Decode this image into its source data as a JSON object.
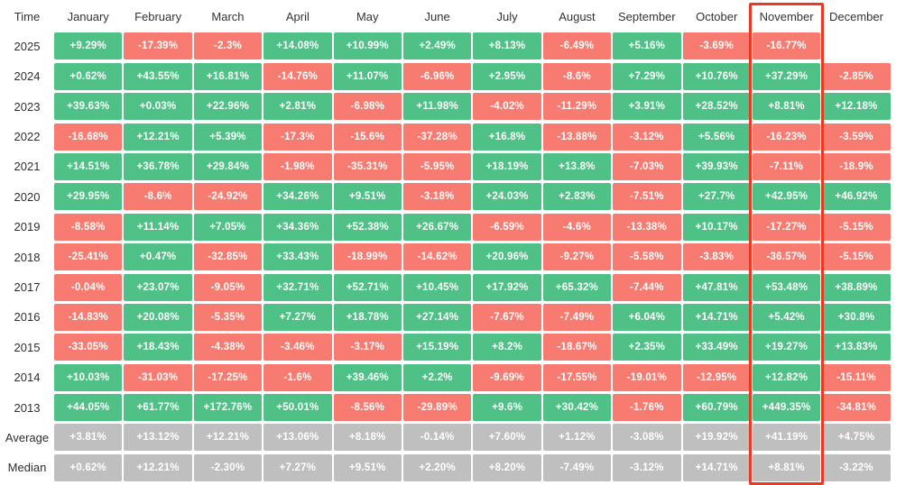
{
  "chart_data": {
    "type": "heatmap",
    "description": "Monthly percentage returns table by year",
    "corner_label": "Time",
    "columns": [
      "January",
      "February",
      "March",
      "April",
      "May",
      "June",
      "July",
      "August",
      "September",
      "October",
      "November",
      "December"
    ],
    "rows": [
      {
        "label": "2025",
        "kind": "year",
        "values": [
          "+9.29%",
          "-17.39%",
          "-2.3%",
          "+14.08%",
          "+10.99%",
          "+2.49%",
          "+8.13%",
          "-6.49%",
          "+5.16%",
          "-3.69%",
          "-16.77%",
          ""
        ]
      },
      {
        "label": "2024",
        "kind": "year",
        "values": [
          "+0.62%",
          "+43.55%",
          "+16.81%",
          "-14.76%",
          "+11.07%",
          "-6.96%",
          "+2.95%",
          "-8.6%",
          "+7.29%",
          "+10.76%",
          "+37.29%",
          "-2.85%"
        ]
      },
      {
        "label": "2023",
        "kind": "year",
        "values": [
          "+39.63%",
          "+0.03%",
          "+22.96%",
          "+2.81%",
          "-6.98%",
          "+11.98%",
          "-4.02%",
          "-11.29%",
          "+3.91%",
          "+28.52%",
          "+8.81%",
          "+12.18%"
        ]
      },
      {
        "label": "2022",
        "kind": "year",
        "values": [
          "-16.68%",
          "+12.21%",
          "+5.39%",
          "-17.3%",
          "-15.6%",
          "-37.28%",
          "+16.8%",
          "-13.88%",
          "-3.12%",
          "+5.56%",
          "-16.23%",
          "-3.59%"
        ]
      },
      {
        "label": "2021",
        "kind": "year",
        "values": [
          "+14.51%",
          "+36.78%",
          "+29.84%",
          "-1.98%",
          "-35.31%",
          "-5.95%",
          "+18.19%",
          "+13.8%",
          "-7.03%",
          "+39.93%",
          "-7.11%",
          "-18.9%"
        ]
      },
      {
        "label": "2020",
        "kind": "year",
        "values": [
          "+29.95%",
          "-8.6%",
          "-24.92%",
          "+34.26%",
          "+9.51%",
          "-3.18%",
          "+24.03%",
          "+2.83%",
          "-7.51%",
          "+27.7%",
          "+42.95%",
          "+46.92%"
        ]
      },
      {
        "label": "2019",
        "kind": "year",
        "values": [
          "-8.58%",
          "+11.14%",
          "+7.05%",
          "+34.36%",
          "+52.38%",
          "+26.67%",
          "-6.59%",
          "-4.6%",
          "-13.38%",
          "+10.17%",
          "-17.27%",
          "-5.15%"
        ]
      },
      {
        "label": "2018",
        "kind": "year",
        "values": [
          "-25.41%",
          "+0.47%",
          "-32.85%",
          "+33.43%",
          "-18.99%",
          "-14.62%",
          "+20.96%",
          "-9.27%",
          "-5.58%",
          "-3.83%",
          "-36.57%",
          "-5.15%"
        ]
      },
      {
        "label": "2017",
        "kind": "year",
        "values": [
          "-0.04%",
          "+23.07%",
          "-9.05%",
          "+32.71%",
          "+52.71%",
          "+10.45%",
          "+17.92%",
          "+65.32%",
          "-7.44%",
          "+47.81%",
          "+53.48%",
          "+38.89%"
        ]
      },
      {
        "label": "2016",
        "kind": "year",
        "values": [
          "-14.83%",
          "+20.08%",
          "-5.35%",
          "+7.27%",
          "+18.78%",
          "+27.14%",
          "-7.67%",
          "-7.49%",
          "+6.04%",
          "+14.71%",
          "+5.42%",
          "+30.8%"
        ]
      },
      {
        "label": "2015",
        "kind": "year",
        "values": [
          "-33.05%",
          "+18.43%",
          "-4.38%",
          "-3.46%",
          "-3.17%",
          "+15.19%",
          "+8.2%",
          "-18.67%",
          "+2.35%",
          "+33.49%",
          "+19.27%",
          "+13.83%"
        ]
      },
      {
        "label": "2014",
        "kind": "year",
        "values": [
          "+10.03%",
          "-31.03%",
          "-17.25%",
          "-1.6%",
          "+39.46%",
          "+2.2%",
          "-9.69%",
          "-17.55%",
          "-19.01%",
          "-12.95%",
          "+12.82%",
          "-15.11%"
        ]
      },
      {
        "label": "2013",
        "kind": "year",
        "values": [
          "+44.05%",
          "+61.77%",
          "+172.76%",
          "+50.01%",
          "-8.56%",
          "-29.89%",
          "+9.6%",
          "+30.42%",
          "-1.76%",
          "+60.79%",
          "+449.35%",
          "-34.81%"
        ]
      },
      {
        "label": "Average",
        "kind": "summary",
        "values": [
          "+3.81%",
          "+13.12%",
          "+12.21%",
          "+13.06%",
          "+8.18%",
          "-0.14%",
          "+7.60%",
          "+1.12%",
          "-3.08%",
          "+19.92%",
          "+41.19%",
          "+4.75%"
        ]
      },
      {
        "label": "Median",
        "kind": "summary",
        "values": [
          "+0.62%",
          "+12.21%",
          "-2.30%",
          "+7.27%",
          "+9.51%",
          "+2.20%",
          "+8.20%",
          "-7.49%",
          "-3.12%",
          "+14.71%",
          "+8.81%",
          "-3.22%"
        ]
      }
    ],
    "highlighted_column": "November",
    "legend_position": "none",
    "grid": false,
    "colors": {
      "positive": "#4FC187",
      "negative": "#F87B71",
      "summary": "#BFBFBF",
      "cell_text": "#FFFFFF",
      "label_text": "#2E2E2E",
      "highlight_border": "#E93A23",
      "background": "#FFFFFF"
    }
  }
}
